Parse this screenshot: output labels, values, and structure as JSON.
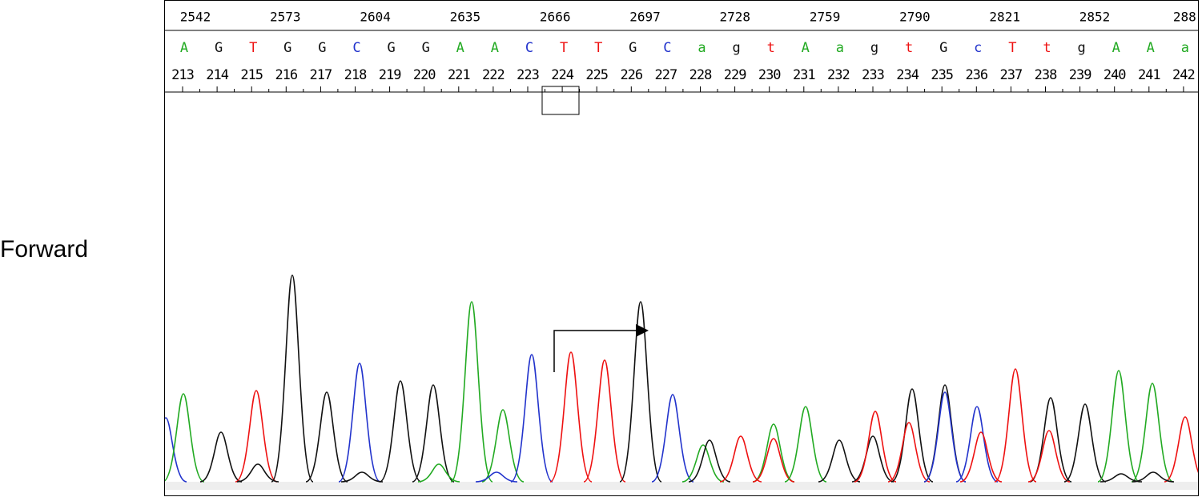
{
  "label": "Forward",
  "ruler": [
    2542,
    2573,
    2604,
    2635,
    2666,
    2697,
    2728,
    2759,
    2790,
    2821,
    2852,
    "288"
  ],
  "bases": [
    "A",
    "G",
    "T",
    "G",
    "G",
    "C",
    "G",
    "G",
    "A",
    "A",
    "C",
    "T",
    "T",
    "G",
    "C",
    "a",
    "g",
    "t",
    "A",
    "a",
    "g",
    "t",
    "G",
    "c",
    "T",
    "t",
    "g",
    "A",
    "A",
    "a"
  ],
  "positions": [
    213,
    214,
    215,
    216,
    217,
    218,
    219,
    220,
    221,
    222,
    223,
    224,
    225,
    226,
    227,
    228,
    229,
    230,
    231,
    232,
    233,
    234,
    235,
    236,
    237,
    238,
    239,
    240,
    241,
    242
  ]
}
